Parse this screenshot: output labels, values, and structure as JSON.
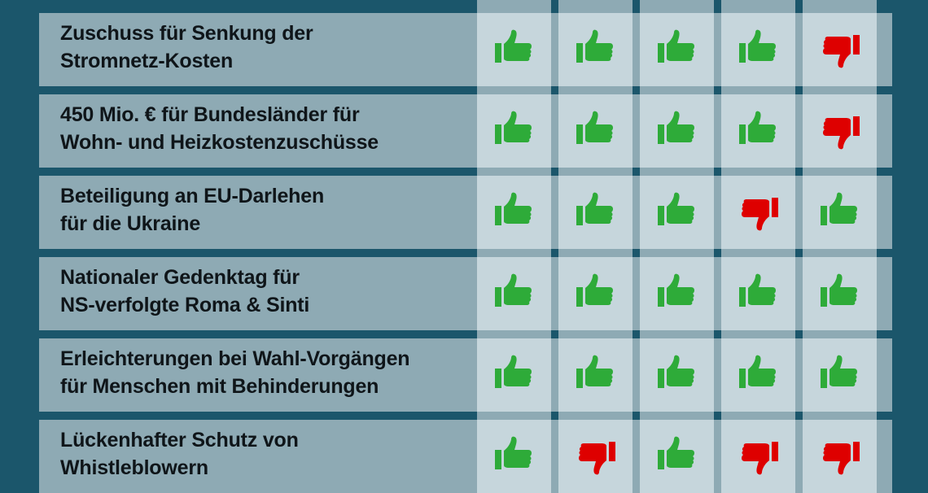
{
  "colors": {
    "background": "#1b566b",
    "band": "#8eaab4",
    "cell": "#c6d6dc",
    "yes": "#2eab39",
    "no": "#de0000"
  },
  "legend": {
    "yes_icon": "thumbs-up-icon",
    "no_icon": "thumbs-down-icon"
  },
  "rows": [
    {
      "label": "Zuschuss für Senkung der\nStromnetz-Kosten",
      "votes": [
        "yes",
        "yes",
        "yes",
        "yes",
        "no"
      ]
    },
    {
      "label": "450 Mio. € für Bundesländer für\nWohn- und Heizkostenzuschüsse",
      "votes": [
        "yes",
        "yes",
        "yes",
        "yes",
        "no"
      ]
    },
    {
      "label": "Beteiligung an EU-Darlehen\nfür die Ukraine",
      "votes": [
        "yes",
        "yes",
        "yes",
        "no",
        "yes"
      ]
    },
    {
      "label": "Nationaler Gedenktag für\nNS-verfolgte Roma & Sinti",
      "votes": [
        "yes",
        "yes",
        "yes",
        "yes",
        "yes"
      ]
    },
    {
      "label": "Erleichterungen bei Wahl-Vorgängen\nfür Menschen mit Behinderungen",
      "votes": [
        "yes",
        "yes",
        "yes",
        "yes",
        "yes"
      ]
    },
    {
      "label": "Lückenhafter Schutz von\nWhistleblowern",
      "votes": [
        "yes",
        "no",
        "yes",
        "no",
        "no"
      ]
    }
  ]
}
